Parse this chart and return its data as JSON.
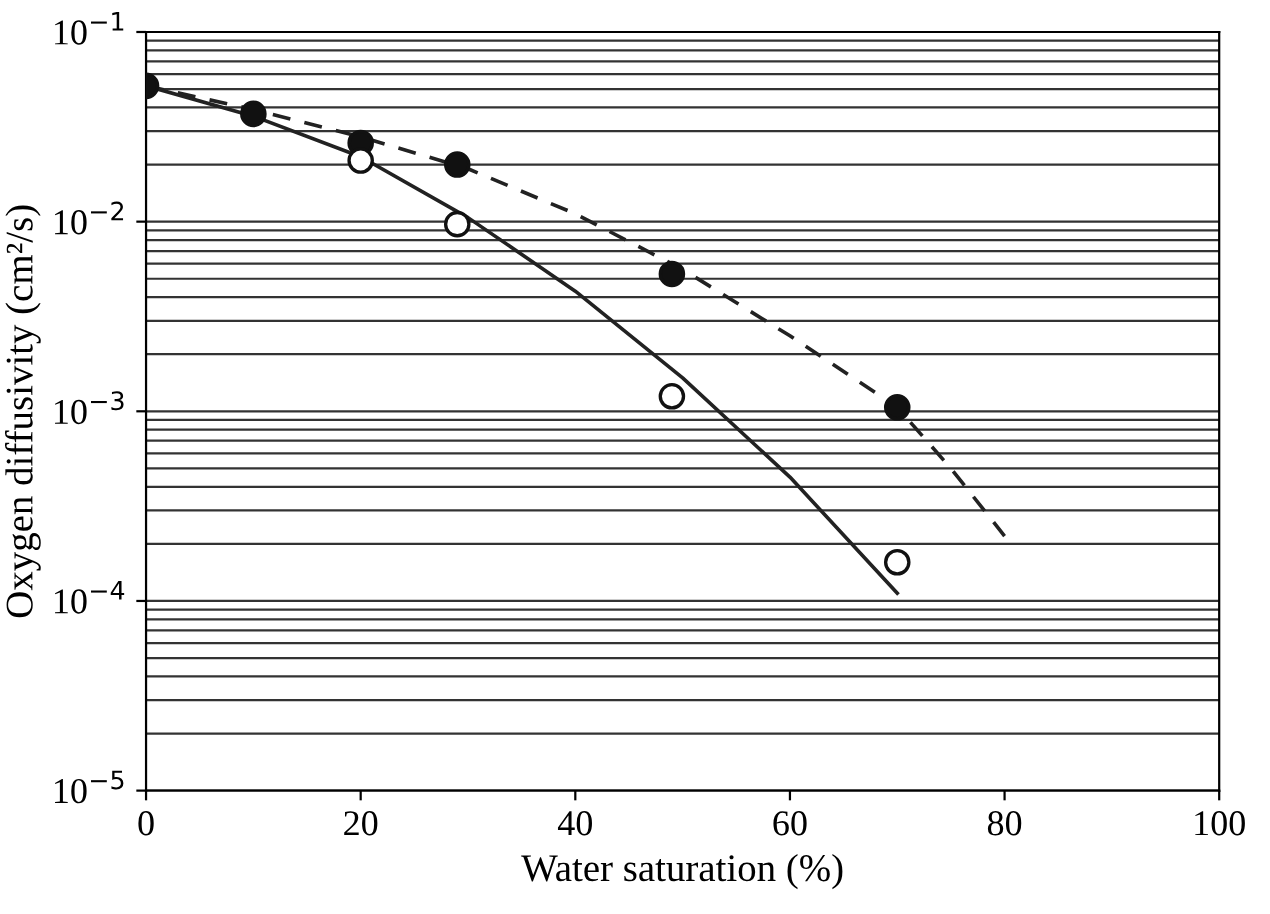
{
  "chart_data": {
    "type": "scatter",
    "xlabel": "Water saturation (%)",
    "ylabel": "Oxygen diffusivity (cm²/s)",
    "log": "y",
    "grid": "y",
    "xlim": [
      0,
      100
    ],
    "xticks": [
      0,
      20,
      40,
      60,
      80,
      100
    ],
    "ylim": [
      1e-05,
      0.1
    ],
    "yticks": [
      {
        "value": 1e-05,
        "label": "10$^{−5}$"
      },
      {
        "value": 0.0001,
        "label": "10$^{−4}$"
      },
      {
        "value": 0.001,
        "label": "10$^{−3}$"
      },
      {
        "value": 0.01,
        "label": "10$^{−2}$"
      },
      {
        "value": 0.1,
        "label": "10$^{−1}$"
      }
    ],
    "series": [
      {
        "type": "line",
        "line_style": "dashed",
        "marker": "none",
        "color": "#222222",
        "x": [
          0,
          10,
          20,
          30,
          40,
          50,
          60,
          70,
          75,
          80
        ],
        "values": [
          0.052,
          0.039,
          0.028,
          0.019,
          0.011,
          0.0056,
          0.0025,
          0.00105,
          0.0005,
          0.00022
        ]
      },
      {
        "type": "line",
        "line_style": "solid",
        "marker": "none",
        "color": "#222222",
        "x": [
          0,
          10,
          20,
          30,
          40,
          50,
          60,
          70
        ],
        "values": [
          0.052,
          0.036,
          0.022,
          0.0105,
          0.0043,
          0.0015,
          0.00045,
          0.00011
        ]
      },
      {
        "marker": "circle",
        "color": "#111111",
        "x": [
          0,
          10,
          20,
          29,
          49,
          70
        ],
        "values": [
          0.052,
          0.037,
          0.026,
          0.02,
          0.0053,
          0.00105
        ]
      },
      {
        "marker": "circle",
        "color": "#ffffff",
        "x": [
          20,
          29,
          49,
          70
        ],
        "values": [
          0.021,
          0.0097,
          0.0012,
          0.00016
        ]
      }
    ]
  }
}
